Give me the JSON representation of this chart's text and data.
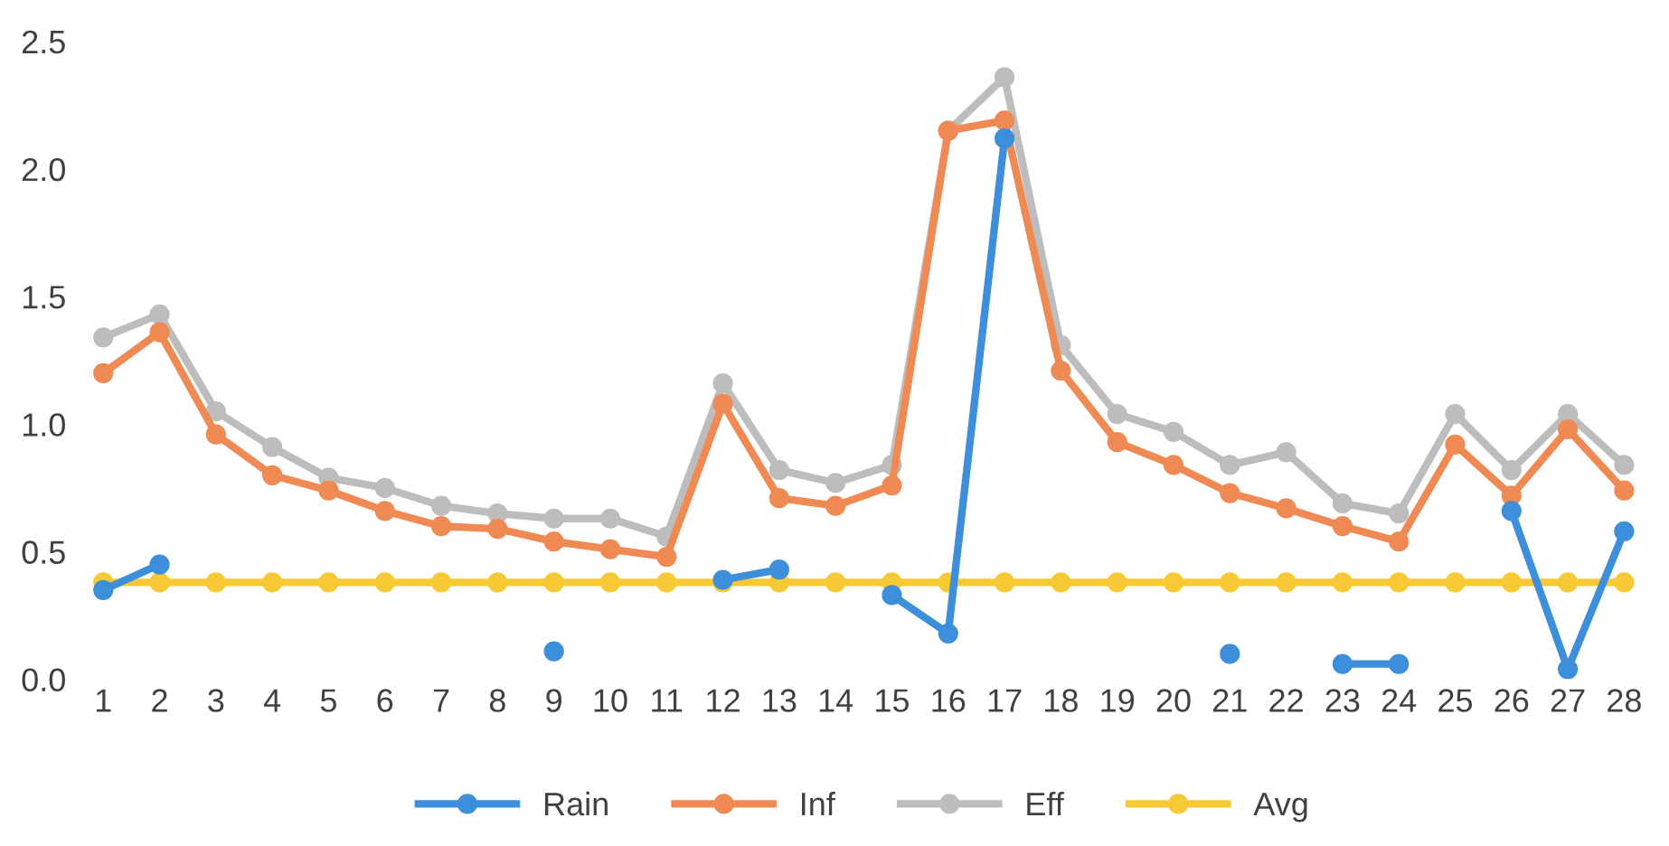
{
  "chart_data": {
    "type": "line",
    "categories": [
      "1",
      "2",
      "3",
      "4",
      "5",
      "6",
      "7",
      "8",
      "9",
      "10",
      "11",
      "12",
      "13",
      "14",
      "15",
      "16",
      "17",
      "18",
      "19",
      "20",
      "21",
      "22",
      "23",
      "24",
      "25",
      "26",
      "27",
      "28"
    ],
    "series": [
      {
        "name": "Rain",
        "color": "#3d8fdb",
        "values": [
          0.35,
          0.45,
          null,
          null,
          null,
          null,
          null,
          null,
          0.11,
          null,
          null,
          0.39,
          0.43,
          null,
          0.33,
          0.18,
          2.12,
          null,
          null,
          null,
          0.1,
          null,
          0.06,
          0.06,
          null,
          0.66,
          0.04,
          0.58
        ]
      },
      {
        "name": "Inf",
        "color": "#f08a55",
        "values": [
          1.2,
          1.36,
          0.96,
          0.8,
          0.74,
          0.66,
          0.6,
          0.59,
          0.54,
          0.51,
          0.48,
          1.08,
          0.71,
          0.68,
          0.76,
          2.15,
          2.19,
          1.21,
          0.93,
          0.84,
          0.73,
          0.67,
          0.6,
          0.54,
          0.92,
          0.72,
          0.98,
          0.74
        ]
      },
      {
        "name": "Eff",
        "color": "#bdbdbd",
        "values": [
          1.34,
          1.43,
          1.05,
          0.91,
          0.79,
          0.75,
          0.68,
          0.65,
          0.63,
          0.63,
          0.56,
          1.16,
          0.82,
          0.77,
          0.84,
          2.15,
          2.36,
          1.31,
          1.04,
          0.97,
          0.84,
          0.89,
          0.69,
          0.65,
          1.04,
          0.82,
          1.04,
          0.84
        ]
      },
      {
        "name": "Avg",
        "color": "#f7c935",
        "values": [
          0.38,
          0.38,
          0.38,
          0.38,
          0.38,
          0.38,
          0.38,
          0.38,
          0.38,
          0.38,
          0.38,
          0.38,
          0.38,
          0.38,
          0.38,
          0.38,
          0.38,
          0.38,
          0.38,
          0.38,
          0.38,
          0.38,
          0.38,
          0.38,
          0.38,
          0.38,
          0.38,
          0.38
        ]
      }
    ],
    "ylim": [
      0,
      2.5
    ],
    "yticks": [
      {
        "value": 0,
        "label": "0.0"
      },
      {
        "value": 0.5,
        "label": "0.5"
      },
      {
        "value": 1.0,
        "label": "1.0"
      },
      {
        "value": 1.5,
        "label": "1.5"
      },
      {
        "value": 2.0,
        "label": "2.0"
      },
      {
        "value": 2.5,
        "label": "2.5"
      }
    ],
    "grid": false,
    "legend": "bottom",
    "marker": "circle",
    "line_style": "solid"
  }
}
